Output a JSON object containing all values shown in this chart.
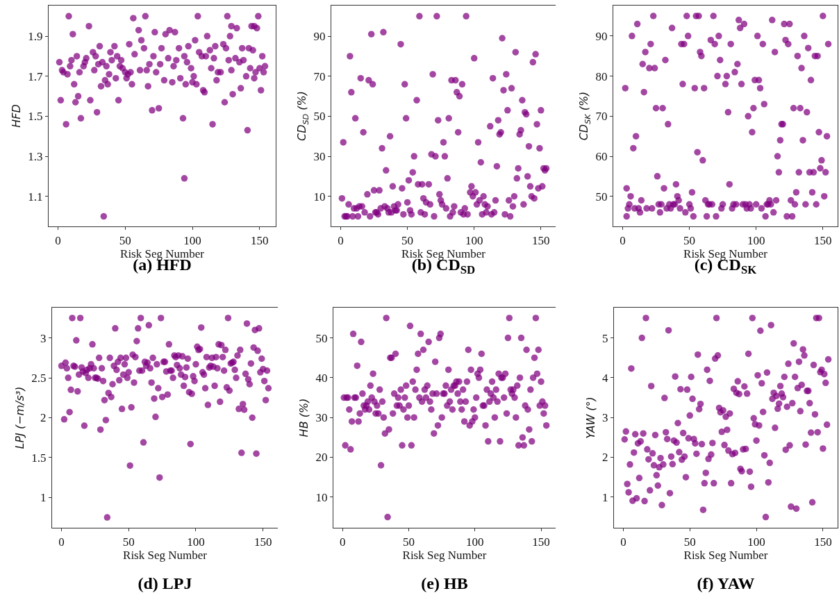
{
  "chart_data": [
    {
      "type": "scatter",
      "title": "(a) HFD",
      "xlabel": "Risk Seg Number",
      "ylabel": "HFD",
      "color": "#800080",
      "marker": "circle",
      "xlim": [
        -7,
        162
      ],
      "ylim": [
        0.95,
        2.053
      ],
      "xticks": [
        0,
        50,
        100,
        150
      ],
      "yticks": [
        1.1,
        1.3,
        1.5,
        1.7,
        1.9
      ],
      "x": [
        1,
        2,
        3,
        4,
        6,
        7,
        8,
        9,
        10,
        11,
        12,
        13,
        14,
        15,
        16,
        17,
        19,
        20,
        21,
        23,
        24,
        26,
        27,
        28,
        29,
        30,
        31,
        32,
        33,
        34,
        35,
        36,
        37,
        38,
        39,
        40,
        42,
        43,
        44,
        45,
        46,
        47,
        48,
        50,
        51,
        52,
        53,
        54,
        55,
        56,
        57,
        60,
        61,
        62,
        64,
        65,
        66,
        67,
        68,
        70,
        71,
        72,
        73,
        75,
        76,
        77,
        79,
        80,
        82,
        83,
        85,
        86,
        87,
        88,
        90,
        91,
        93,
        94,
        94,
        95,
        96,
        97,
        99,
        100,
        101,
        102,
        103,
        104,
        105,
        107,
        108,
        109,
        110,
        111,
        113,
        114,
        115,
        116,
        117,
        118,
        119,
        121,
        123,
        124,
        125,
        126,
        127,
        128,
        129,
        129,
        130,
        132,
        133,
        135,
        136,
        137,
        138,
        140,
        141,
        142,
        143,
        144,
        145,
        146,
        146,
        147,
        148,
        149,
        150,
        151,
        152,
        153,
        154
      ],
      "values": [
        1.77,
        1.58,
        1.73,
        1.72,
        1.46,
        1.71,
        2.0,
        1.75,
        1.78,
        1.91,
        1.66,
        1.57,
        1.8,
        1.6,
        1.72,
        1.49,
        1.75,
        1.77,
        1.79,
        1.95,
        1.58,
        1.82,
        1.73,
        1.8,
        1.52,
        1.76,
        1.85,
        1.65,
        1.77,
        1.0,
        1.68,
        1.75,
        1.66,
        1.71,
        1.82,
        1.78,
        1.85,
        1.69,
        1.8,
        1.58,
        1.75,
        1.78,
        1.74,
        1.72,
        1.69,
        1.71,
        1.86,
        1.72,
        1.66,
        1.99,
        1.81,
        1.93,
        1.73,
        1.88,
        1.84,
        2.0,
        1.73,
        1.65,
        1.76,
        1.53,
        1.8,
        1.92,
        1.72,
        1.54,
        1.76,
        1.84,
        1.68,
        1.91,
        1.79,
        1.93,
        1.67,
        1.75,
        1.92,
        1.78,
        1.84,
        1.69,
        1.49,
        1.8,
        1.19,
        1.66,
        1.77,
        1.85,
        1.74,
        1.67,
        1.7,
        1.88,
        1.66,
        2.0,
        1.82,
        1.8,
        1.63,
        1.62,
        1.8,
        1.9,
        1.83,
        1.74,
        1.46,
        1.79,
        1.85,
        1.68,
        1.72,
        1.72,
        1.86,
        1.57,
        1.84,
        2.0,
        1.78,
        1.9,
        1.95,
        1.73,
        1.61,
        1.79,
        1.94,
        1.77,
        1.64,
        1.84,
        1.78,
        1.7,
        1.43,
        1.84,
        1.74,
        1.95,
        1.83,
        1.69,
        1.95,
        1.72,
        1.94,
        2.0,
        1.74,
        1.63,
        1.8,
        1.72,
        1.75
      ]
    },
    {
      "type": "scatter",
      "title": "(b) CD$_{SD}$",
      "xlabel": "Risk Seg Number",
      "ylabel": "CD$_{SD}$ (%)",
      "color": "#800080",
      "marker": "circle",
      "xlim": [
        -7,
        161
      ],
      "ylim": [
        -5,
        105.3
      ],
      "xticks": [
        0,
        50,
        100,
        150
      ],
      "yticks": [
        10,
        30,
        50,
        70,
        90
      ],
      "x": [
        1,
        2,
        3,
        4,
        5,
        6,
        7,
        8,
        9,
        10,
        11,
        12,
        13,
        14,
        15,
        16,
        17,
        18,
        20,
        21,
        22,
        23,
        24,
        25,
        26,
        27,
        28,
        29,
        30,
        31,
        32,
        33,
        34,
        35,
        36,
        37,
        38,
        39,
        40,
        41,
        42,
        43,
        45,
        46,
        47,
        48,
        49,
        50,
        51,
        52,
        53,
        54,
        55,
        57,
        58,
        59,
        60,
        61,
        62,
        63,
        64,
        66,
        67,
        68,
        69,
        70,
        71,
        72,
        73,
        74,
        75,
        76,
        77,
        78,
        79,
        80,
        81,
        82,
        83,
        84,
        85,
        86,
        87,
        88,
        89,
        90,
        91,
        92,
        93,
        94,
        95,
        97,
        98,
        99,
        100,
        101,
        102,
        103,
        104,
        105,
        106,
        107,
        108,
        109,
        110,
        112,
        113,
        114,
        115,
        116,
        117,
        118,
        119,
        120,
        121,
        122,
        123,
        124,
        125,
        126,
        127,
        128,
        129,
        130,
        131,
        132,
        133,
        134,
        135,
        136,
        137,
        138,
        139,
        140,
        141,
        142,
        143,
        144,
        145,
        146,
        147,
        148,
        149,
        150,
        151,
        152,
        153,
        154
      ],
      "values": [
        9,
        37,
        0,
        0,
        0,
        6,
        80,
        62,
        0,
        4,
        49,
        4,
        0,
        5,
        69,
        5,
        42,
        2,
        11,
        68,
        0,
        91,
        66,
        13,
        2,
        2,
        1,
        13,
        4,
        34,
        92,
        5,
        23,
        4,
        2,
        40,
        2,
        15,
        5,
        3,
        3,
        6,
        86,
        14,
        1,
        66,
        49,
        7,
        18,
        3,
        1,
        22,
        30,
        58,
        16,
        100,
        2,
        16,
        9,
        1,
        7,
        16,
        6,
        31,
        71,
        0,
        30,
        100,
        48,
        11,
        8,
        6,
        37,
        30,
        4,
        19,
        49,
        0,
        68,
        2,
        5,
        68,
        62,
        42,
        60,
        2,
        66,
        1,
        4,
        100,
        1,
        12,
        15,
        10,
        79,
        12,
        6,
        37,
        8,
        27,
        1,
        10,
        6,
        2,
        5,
        45,
        1,
        69,
        2,
        8,
        25,
        48,
        41,
        42,
        89,
        63,
        1,
        71,
        53,
        8,
        0,
        64,
        5,
        10,
        82,
        19,
        24,
        41,
        43,
        58,
        6,
        52,
        51,
        20,
        35,
        15,
        10,
        77,
        9,
        81,
        46,
        14,
        34,
        53,
        15,
        24,
        23,
        24
      ]
    },
    {
      "type": "scatter",
      "title": "(c) CD$_{SK}$",
      "xlabel": "Risk Seg Number",
      "ylabel": "CD$_{SK}$ (%)",
      "color": "#800080",
      "marker": "circle",
      "xlim": [
        -7,
        161
      ],
      "ylim": [
        42.5,
        97.6
      ],
      "xticks": [
        0,
        50,
        100,
        150
      ],
      "yticks": [
        50,
        60,
        70,
        80,
        90
      ],
      "x": [
        2,
        3,
        3,
        4,
        5,
        6,
        7,
        8,
        9,
        10,
        11,
        12,
        13,
        14,
        15,
        16,
        17,
        18,
        20,
        21,
        22,
        23,
        24,
        25,
        26,
        27,
        28,
        29,
        30,
        31,
        32,
        33,
        34,
        35,
        36,
        37,
        38,
        39,
        40,
        41,
        42,
        43,
        44,
        45,
        46,
        47,
        48,
        49,
        50,
        51,
        52,
        53,
        54,
        55,
        56,
        57,
        58,
        59,
        60,
        61,
        62,
        63,
        64,
        65,
        66,
        67,
        68,
        69,
        70,
        71,
        72,
        73,
        74,
        75,
        77,
        78,
        79,
        80,
        81,
        82,
        83,
        84,
        85,
        86,
        87,
        88,
        89,
        90,
        91,
        92,
        93,
        94,
        95,
        96,
        97,
        98,
        99,
        100,
        101,
        102,
        103,
        104,
        105,
        106,
        107,
        108,
        109,
        110,
        111,
        112,
        113,
        114,
        115,
        116,
        117,
        118,
        119,
        120,
        121,
        122,
        123,
        124,
        125,
        126,
        127,
        128,
        129,
        130,
        131,
        132,
        133,
        134,
        135,
        136,
        137,
        138,
        139,
        140,
        141,
        142,
        143,
        144,
        145,
        146,
        147,
        148,
        149,
        150,
        151,
        152,
        153,
        154
      ],
      "values": [
        77,
        52,
        45,
        47,
        48,
        50,
        90,
        62,
        47,
        65,
        93,
        47,
        46,
        49,
        83,
        76,
        86,
        47,
        82,
        88,
        47,
        95,
        82,
        72,
        55,
        48,
        46,
        48,
        72,
        52,
        84,
        47,
        68,
        48,
        47,
        92,
        48,
        48,
        53,
        50,
        49,
        47,
        88,
        78,
        88,
        46,
        95,
        90,
        48,
        47,
        51,
        45,
        77,
        95,
        61,
        95,
        86,
        85,
        59,
        77,
        49,
        45,
        48,
        48,
        89,
        48,
        95,
        88,
        45,
        80,
        90,
        84,
        47,
        48,
        78,
        80,
        71,
        53,
        88,
        47,
        48,
        81,
        48,
        83,
        94,
        92,
        78,
        48,
        93,
        48,
        47,
        70,
        48,
        47,
        66,
        72,
        79,
        48,
        90,
        79,
        77,
        47,
        88,
        73,
        45,
        48,
        48,
        49,
        48,
        94,
        46,
        86,
        49,
        60,
        56,
        64,
        68,
        68,
        93,
        89,
        45,
        88,
        93,
        49,
        45,
        72,
        48,
        51,
        85,
        56,
        72,
        82,
        64,
        90,
        48,
        71,
        87,
        56,
        79,
        51,
        56,
        85,
        48,
        85,
        66,
        57,
        59,
        95,
        50,
        56,
        65,
        88
      ]
    },
    {
      "type": "scatter",
      "title": "(d) LPJ",
      "xlabel": "Risk Seg Number",
      "ylabel": "LPJ (−m/s³)",
      "color": "#800080",
      "marker": "circle",
      "xlim": [
        -7,
        161
      ],
      "ylim": [
        0.62,
        3.38
      ],
      "xticks": [
        0,
        50,
        100,
        150
      ],
      "yticks": [
        1,
        1.5,
        2,
        2.5,
        3
      ],
      "x": [
        0,
        2,
        3,
        4,
        5,
        6,
        7,
        8,
        9,
        10,
        11,
        12,
        13,
        14,
        15,
        16,
        17,
        18,
        19,
        20,
        21,
        22,
        23,
        24,
        25,
        26,
        27,
        28,
        29,
        30,
        31,
        32,
        33,
        34,
        35,
        36,
        37,
        38,
        39,
        40,
        41,
        42,
        43,
        44,
        45,
        46,
        47,
        48,
        49,
        50,
        51,
        52,
        53,
        54,
        55,
        56,
        57,
        58,
        59,
        60,
        61,
        62,
        63,
        64,
        65,
        66,
        67,
        68,
        69,
        70,
        71,
        72,
        73,
        74,
        75,
        76,
        77,
        78,
        79,
        80,
        81,
        82,
        83,
        84,
        85,
        86,
        87,
        88,
        89,
        90,
        91,
        92,
        93,
        94,
        95,
        96,
        97,
        98,
        99,
        100,
        101,
        102,
        103,
        104,
        105,
        106,
        107,
        108,
        109,
        110,
        111,
        112,
        113,
        114,
        115,
        116,
        117,
        118,
        119,
        120,
        121,
        122,
        123,
        124,
        125,
        126,
        127,
        128,
        129,
        130,
        131,
        132,
        133,
        134,
        135,
        136,
        137,
        138,
        139,
        140,
        141,
        142,
        143,
        144,
        145,
        146,
        147,
        148,
        149,
        150,
        151,
        152,
        153,
        154
      ],
      "values": [
        2.65,
        1.98,
        2.69,
        2.62,
        2.5,
        2.07,
        2.35,
        3.25,
        2.65,
        2.64,
        2.97,
        2.33,
        2.54,
        3.25,
        2.63,
        2.58,
        1.9,
        2.56,
        2.6,
        2.5,
        2.62,
        2.67,
        2.92,
        2.62,
        2.5,
        2.5,
        2.49,
        2.75,
        1.85,
        2.62,
        2.46,
        2.22,
        1.97,
        0.75,
        2.31,
        2.75,
        2.26,
        2.42,
        2.65,
        3.12,
        2.6,
        2.7,
        2.47,
        2.75,
        2.11,
        2.54,
        2.67,
        2.75,
        2.5,
        2.57,
        1.4,
        2.13,
        2.79,
        2.44,
        2.76,
        2.96,
        3.12,
        2.59,
        3.25,
        2.59,
        1.69,
        2.7,
        2.65,
        2.69,
        3.16,
        2.62,
        2.44,
        2.75,
        2.24,
        2.01,
        2.67,
        2.37,
        1.25,
        3.25,
        2.26,
        2.7,
        2.7,
        2.58,
        2.29,
        2.92,
        2.59,
        2.59,
        2.5,
        2.78,
        2.76,
        2.66,
        2.78,
        2.62,
        2.54,
        2.77,
        2.4,
        2.51,
        2.63,
        2.74,
        2.32,
        1.67,
        2.3,
        2.52,
        2.46,
        2.67,
        2.89,
        2.85,
        2.86,
        3.13,
        2.57,
        2.54,
        2.37,
        2.76,
        2.16,
        2.63,
        2.65,
        2.75,
        2.64,
        2.4,
        2.76,
        2.62,
        2.92,
        2.2,
        2.91,
        2.76,
        2.59,
        2.85,
        2.38,
        3.25,
        2.34,
        2.68,
        2.69,
        2.7,
        2.6,
        2.5,
        2.78,
        2.11,
        2.85,
        1.56,
        2.17,
        2.1,
        2.55,
        3.18,
        2.48,
        2.42,
        2.68,
        2.0,
        2.88,
        3.1,
        1.55,
        2.84,
        3.12,
        2.57,
        2.74,
        2.61,
        2.46,
        2.22,
        2.59,
        2.37
      ]
    },
    {
      "type": "scatter",
      "title": "(e) HB",
      "xlabel": "Risk Seg Number",
      "ylabel": "HB (%)",
      "color": "#800080",
      "marker": "circle",
      "xlim": [
        -7,
        161
      ],
      "ylim": [
        2.3,
        57.6
      ],
      "xticks": [
        0,
        50,
        100,
        150
      ],
      "yticks": [
        10,
        20,
        30,
        40,
        50
      ],
      "x": [
        1,
        2,
        3,
        4,
        5,
        6,
        7,
        8,
        9,
        10,
        11,
        12,
        13,
        14,
        15,
        16,
        17,
        18,
        19,
        20,
        21,
        22,
        23,
        24,
        25,
        26,
        27,
        28,
        29,
        30,
        31,
        32,
        33,
        34,
        35,
        36,
        37,
        38,
        39,
        40,
        41,
        42,
        43,
        44,
        45,
        46,
        47,
        48,
        49,
        50,
        51,
        52,
        53,
        54,
        55,
        56,
        57,
        58,
        59,
        60,
        61,
        62,
        63,
        64,
        65,
        66,
        67,
        68,
        69,
        70,
        71,
        72,
        73,
        74,
        75,
        76,
        77,
        78,
        79,
        80,
        81,
        82,
        83,
        84,
        85,
        86,
        87,
        88,
        89,
        90,
        91,
        92,
        93,
        94,
        95,
        96,
        97,
        98,
        99,
        100,
        101,
        102,
        103,
        104,
        105,
        106,
        107,
        108,
        109,
        110,
        111,
        112,
        113,
        114,
        115,
        116,
        117,
        118,
        119,
        120,
        121,
        122,
        123,
        124,
        125,
        126,
        127,
        128,
        129,
        130,
        131,
        132,
        133,
        134,
        135,
        136,
        137,
        138,
        139,
        140,
        141,
        142,
        143,
        144,
        145,
        146,
        147,
        148,
        149,
        150,
        151,
        152,
        153,
        154
      ],
      "values": [
        35,
        23,
        35,
        35,
        32,
        22,
        29,
        51,
        35,
        35,
        43,
        29,
        31,
        49,
        36,
        33,
        32,
        33,
        34,
        32,
        38,
        35,
        41,
        34,
        31,
        33,
        31,
        37,
        18,
        34,
        30,
        26,
        55,
        5,
        27,
        45,
        45,
        31,
        36,
        46,
        33,
        35,
        33,
        37,
        23,
        32,
        35,
        38,
        30,
        33,
        53,
        23,
        39,
        30,
        37,
        42,
        46,
        35,
        51,
        34,
        47,
        37,
        35,
        38,
        49,
        34,
        32,
        36,
        26,
        44,
        36,
        28,
        50,
        51,
        30,
        36,
        36,
        38,
        33,
        42,
        34,
        37,
        32,
        38,
        38,
        39,
        36,
        39,
        34,
        32,
        37,
        29,
        34,
        39,
        47,
        28,
        42,
        29,
        32,
        30,
        35,
        41,
        40,
        42,
        46,
        33,
        33,
        28,
        37,
        24,
        34,
        36,
        39,
        35,
        30,
        37,
        34,
        41,
        24,
        40,
        40,
        35,
        41,
        31,
        50,
        55,
        37,
        36,
        37,
        35,
        30,
        38,
        23,
        40,
        50,
        25,
        23,
        33,
        47,
        32,
        27,
        37,
        24,
        40,
        45,
        55,
        41,
        47,
        33,
        39,
        34,
        31,
        33,
        28
      ]
    },
    {
      "type": "scatter",
      "title": "(f) YAW",
      "xlabel": "Risk Seg Number",
      "ylabel": "YAW (°)",
      "color": "#800080",
      "marker": "circle",
      "xlim": [
        -7,
        161
      ],
      "ylim": [
        0.23,
        5.76
      ],
      "xticks": [
        0,
        50,
        100,
        150
      ],
      "yticks": [
        1,
        2,
        3,
        4,
        5
      ],
      "x": [
        1,
        2,
        3,
        4,
        5,
        6,
        7,
        8,
        9,
        10,
        11,
        12,
        13,
        14,
        15,
        16,
        17,
        18,
        19,
        20,
        21,
        22,
        23,
        24,
        25,
        26,
        27,
        28,
        29,
        30,
        31,
        32,
        33,
        34,
        35,
        36,
        37,
        38,
        39,
        40,
        41,
        42,
        43,
        44,
        45,
        46,
        47,
        48,
        49,
        50,
        51,
        52,
        53,
        54,
        55,
        56,
        57,
        58,
        59,
        60,
        61,
        62,
        63,
        64,
        65,
        66,
        67,
        68,
        69,
        70,
        71,
        72,
        73,
        74,
        75,
        76,
        77,
        78,
        79,
        80,
        81,
        82,
        83,
        84,
        85,
        86,
        87,
        88,
        89,
        90,
        91,
        92,
        93,
        94,
        95,
        96,
        97,
        98,
        99,
        100,
        101,
        102,
        103,
        104,
        105,
        106,
        107,
        108,
        109,
        110,
        111,
        112,
        113,
        114,
        115,
        116,
        117,
        118,
        119,
        120,
        121,
        122,
        123,
        124,
        125,
        126,
        127,
        128,
        129,
        130,
        131,
        132,
        133,
        134,
        135,
        136,
        137,
        138,
        139,
        140,
        141,
        142,
        143,
        144,
        145,
        146,
        147,
        148,
        149,
        150,
        151,
        152,
        153,
        154
      ],
      "values": [
        2.45,
        2.65,
        1.33,
        1.12,
        1.82,
        4.23,
        0.91,
        2.12,
        2.58,
        0.97,
        2.35,
        1.48,
        2.4,
        5.0,
        2.6,
        0.9,
        5.5,
        2.2,
        1.95,
        1.17,
        3.79,
        2.1,
        1.8,
        2.56,
        1.55,
        1.29,
        1.75,
        1.98,
        0.8,
        1.82,
        3.49,
        2.63,
        2.46,
        5.19,
        1.1,
        2.02,
        1.83,
        2.42,
        4.03,
        2.37,
        2.86,
        2.13,
        3.71,
        1.94,
        2.61,
        2.02,
        1.5,
        3.7,
        2.48,
        3.05,
        4.02,
        3.47,
        2.46,
        2.35,
        2.09,
        4.58,
        3.21,
        3.34,
        2.33,
        0.68,
        1.35,
        1.61,
        4.2,
        1.96,
        3.92,
        2.07,
        2.36,
        1.35,
        4.48,
        5.5,
        4.56,
        3.24,
        3.13,
        2.64,
        3.18,
        2.31,
        3.02,
        2.69,
        2.17,
        3.1,
        1.35,
        2.08,
        3.72,
        2.11,
        3.62,
        3.91,
        3.59,
        1.71,
        1.65,
        2.2,
        3.78,
        2.21,
        3.6,
        4.6,
        1.64,
        1.26,
        5.5,
        2.98,
        2.83,
        2.42,
        4.06,
        2.8,
        5.18,
        3.86,
        3.14,
        2.05,
        0.5,
        4.13,
        1.37,
        1.86,
        5.32,
        3.47,
        3.62,
        2.74,
        3.54,
        3.22,
        3.35,
        3.79,
        3.6,
        3.51,
        4.02,
        2.19,
        3.27,
        4.35,
        2.3,
        0.76,
        3.36,
        4.86,
        4.02,
        0.71,
        3.74,
        4.4,
        3.16,
        3.82,
        4.71,
        4.56,
        2.32,
        3.67,
        3.67,
        3.36,
        2.62,
        0.87,
        4.32,
        3.08,
        5.5,
        2.63,
        5.5,
        4.14,
        4.2,
        2.22,
        4.09,
        3.87,
        2.82,
        4.46
      ]
    }
  ]
}
